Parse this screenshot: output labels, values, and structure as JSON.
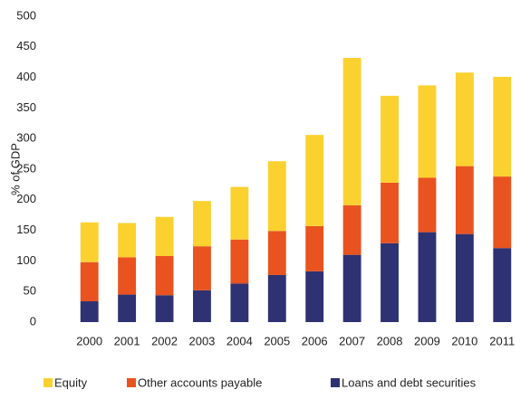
{
  "chart_data": {
    "type": "stacked-bar",
    "y_label": "% of GDP",
    "categories": [
      "2000",
      "2001",
      "2002",
      "2003",
      "2004",
      "2005",
      "2006",
      "2007",
      "2008",
      "2009",
      "2010",
      "2011"
    ],
    "series": [
      {
        "name": "Equity",
        "color": "#fbd130",
        "values": [
          65,
          56,
          64,
          74,
          86,
          114,
          149,
          241,
          142,
          151,
          153,
          163
        ]
      },
      {
        "name": "Other accounts payable",
        "color": "#e8531f",
        "values": [
          64,
          61,
          64,
          72,
          72,
          72,
          74,
          81,
          99,
          89,
          111,
          117
        ]
      },
      {
        "name": "Loans and debt securities",
        "color": "#2e3272",
        "values": [
          34,
          45,
          44,
          52,
          63,
          77,
          83,
          110,
          129,
          147,
          144,
          121
        ]
      }
    ],
    "ylim": [
      0,
      500
    ],
    "yticks": [
      0,
      50,
      100,
      150,
      200,
      250,
      300,
      350,
      400,
      450,
      500
    ]
  }
}
